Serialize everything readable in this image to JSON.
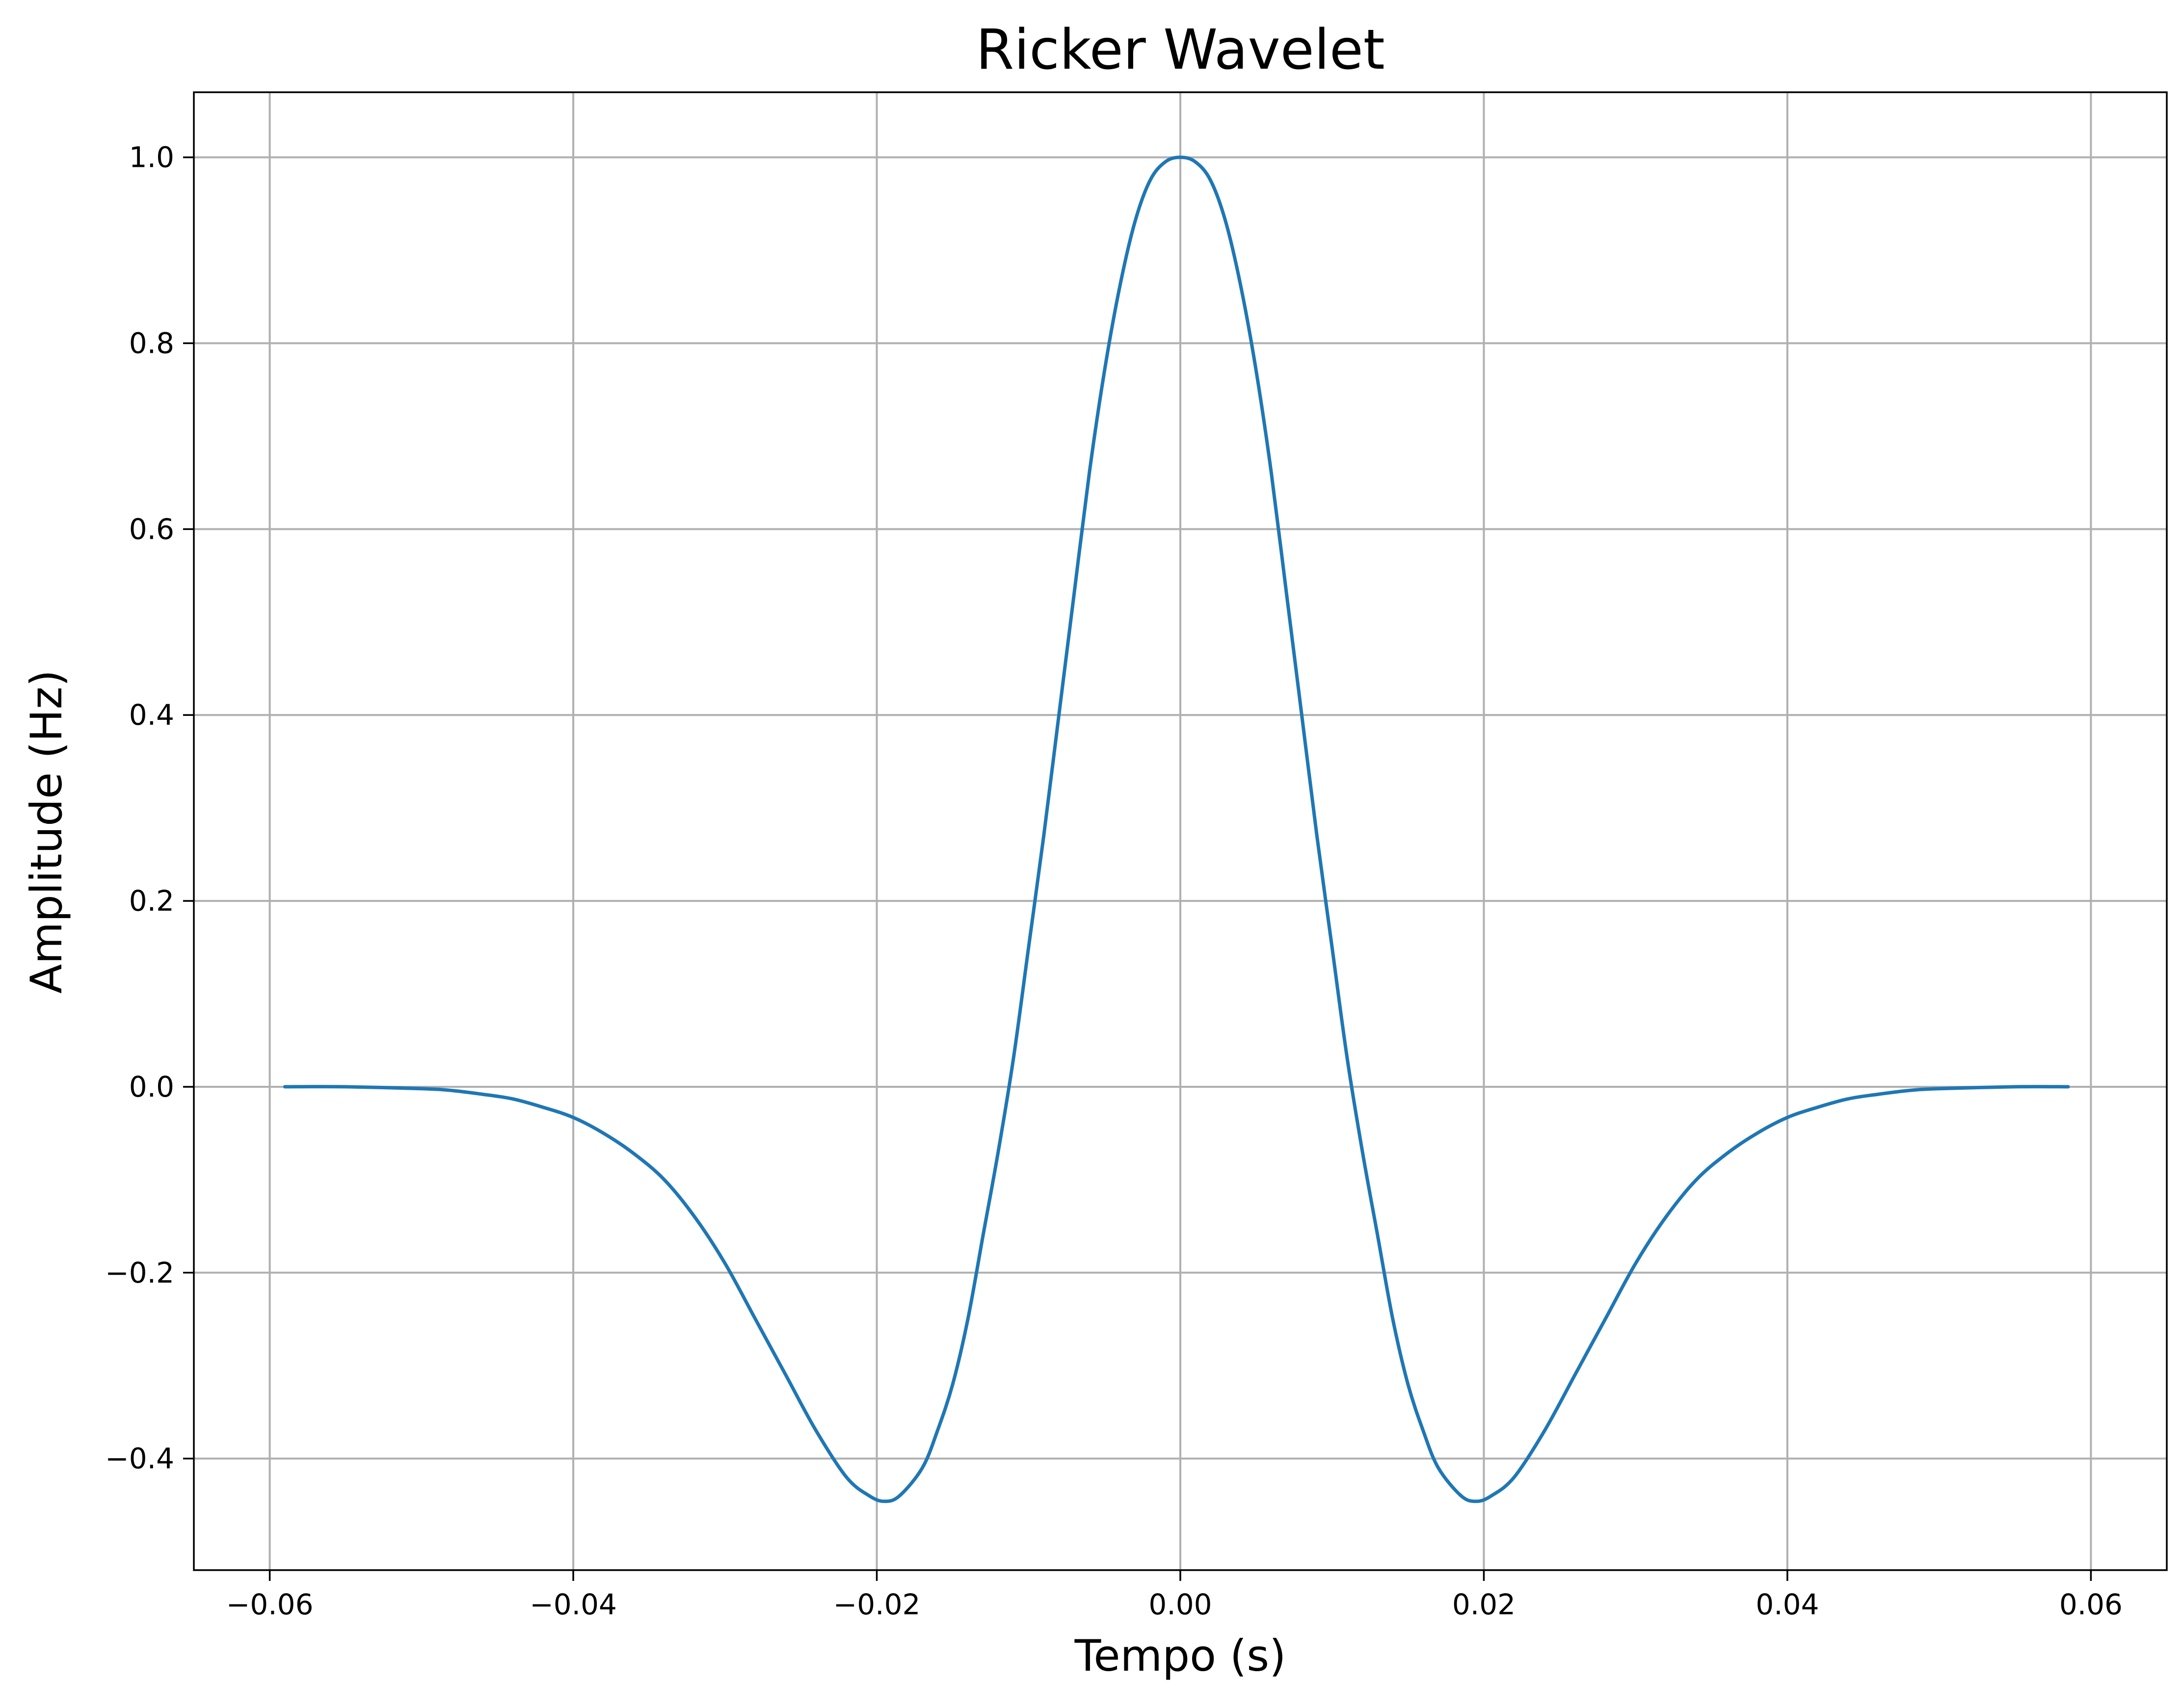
{
  "chart_data": {
    "type": "line",
    "title": "Ricker Wavelet",
    "xlabel": "Tempo (s)",
    "ylabel": "Amplitude (Hz)",
    "xlim": [
      -0.065,
      0.065
    ],
    "ylim": [
      -0.52,
      1.07
    ],
    "xticks": [
      -0.06,
      -0.04,
      -0.02,
      0.0,
      0.02,
      0.04,
      0.06
    ],
    "xtick_labels": [
      "−0.06",
      "−0.04",
      "−0.02",
      "0.00",
      "0.02",
      "0.04",
      "0.06"
    ],
    "yticks": [
      -0.4,
      -0.2,
      0.0,
      0.2,
      0.4,
      0.6,
      0.8,
      1.0
    ],
    "ytick_labels": [
      "−0.4",
      "−0.2",
      "0.0",
      "0.2",
      "0.4",
      "0.6",
      "0.8",
      "1.0"
    ],
    "grid": true,
    "line_color": "#1f77b4",
    "series": [
      {
        "x": [
          -0.059,
          -0.055,
          -0.05,
          -0.048,
          -0.046,
          -0.044,
          -0.042,
          -0.04,
          -0.038,
          -0.036,
          -0.034,
          -0.032,
          -0.03,
          -0.028,
          -0.026,
          -0.024,
          -0.022,
          -0.0205,
          -0.0195,
          -0.0185,
          -0.017,
          -0.016,
          -0.015,
          -0.014,
          -0.013,
          -0.012,
          -0.011,
          -0.01,
          -0.009,
          -0.008,
          -0.007,
          -0.006,
          -0.005,
          -0.004,
          -0.003,
          -0.002,
          -0.001,
          0.0,
          0.001,
          0.002,
          0.003,
          0.004,
          0.005,
          0.006,
          0.007,
          0.008,
          0.009,
          0.01,
          0.011,
          0.012,
          0.013,
          0.014,
          0.015,
          0.016,
          0.017,
          0.0185,
          0.0195,
          0.0205,
          0.022,
          0.024,
          0.026,
          0.028,
          0.03,
          0.032,
          0.034,
          0.036,
          0.038,
          0.04,
          0.042,
          0.044,
          0.046,
          0.048,
          0.05,
          0.055,
          0.0585
        ],
        "y": [
          0.0,
          0.0,
          -0.002,
          -0.004,
          -0.008,
          -0.013,
          -0.022,
          -0.033,
          -0.05,
          -0.072,
          -0.1,
          -0.14,
          -0.19,
          -0.25,
          -0.31,
          -0.37,
          -0.42,
          -0.44,
          -0.446,
          -0.44,
          -0.41,
          -0.37,
          -0.32,
          -0.25,
          -0.16,
          -0.07,
          0.03,
          0.15,
          0.27,
          0.4,
          0.53,
          0.66,
          0.77,
          0.86,
          0.93,
          0.975,
          0.995,
          1.0,
          0.995,
          0.975,
          0.93,
          0.86,
          0.77,
          0.66,
          0.53,
          0.4,
          0.27,
          0.15,
          0.03,
          -0.07,
          -0.16,
          -0.25,
          -0.32,
          -0.37,
          -0.41,
          -0.44,
          -0.446,
          -0.44,
          -0.42,
          -0.37,
          -0.31,
          -0.25,
          -0.19,
          -0.14,
          -0.1,
          -0.072,
          -0.05,
          -0.033,
          -0.022,
          -0.013,
          -0.008,
          -0.004,
          -0.002,
          0.0,
          0.0
        ]
      }
    ]
  }
}
